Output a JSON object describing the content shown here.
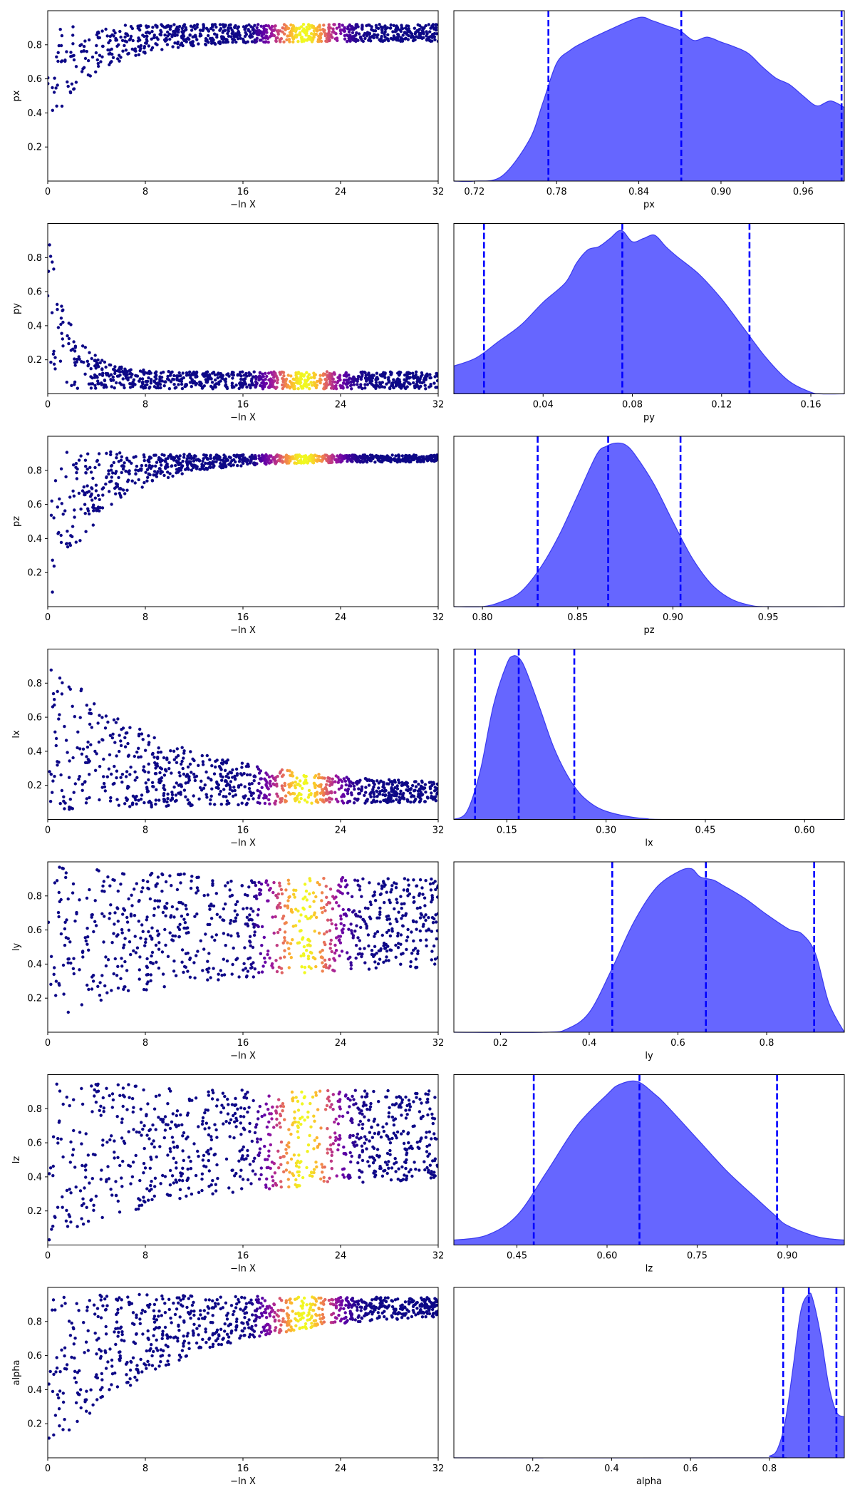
{
  "trace_xlabel": "−ln X",
  "trace_xticks": [
    0,
    8,
    16,
    24,
    32
  ],
  "trace_xlim": [
    0,
    32
  ],
  "trace_ylim": [
    0,
    1
  ],
  "trace_yticks": [
    0.2,
    0.4,
    0.6,
    0.8
  ],
  "colormap": [
    "#0d0887",
    "#5c01a6",
    "#9c179e",
    "#cc4778",
    "#ed7953",
    "#fdb42f",
    "#f0f921"
  ],
  "fill_color": "#6666ff",
  "line_color": "#0000ff",
  "chart_data": [
    {
      "type": "scatter",
      "param": "px",
      "ylabel": "px",
      "trace": {
        "start": [
          0.3,
          0.9
        ],
        "converge": 0.87,
        "spread": 0.05,
        "xmax": 32,
        "tau": 4,
        "bright_center": 21,
        "bright_width": 2.5
      },
      "kde": {
        "xlabel": "px",
        "xlim": [
          0.705,
          0.99
        ],
        "xticks": [
          0.72,
          0.78,
          0.84,
          0.9,
          0.96
        ],
        "x": [
          0.705,
          0.72,
          0.74,
          0.76,
          0.77,
          0.78,
          0.79,
          0.8,
          0.82,
          0.84,
          0.85,
          0.86,
          0.87,
          0.88,
          0.89,
          0.9,
          0.91,
          0.92,
          0.93,
          0.94,
          0.95,
          0.96,
          0.97,
          0.98,
          0.99
        ],
        "y": [
          0.0,
          0.0,
          0.03,
          0.25,
          0.48,
          0.72,
          0.8,
          0.85,
          0.93,
          1.0,
          0.98,
          0.95,
          0.92,
          0.86,
          0.88,
          0.85,
          0.82,
          0.78,
          0.7,
          0.63,
          0.59,
          0.52,
          0.46,
          0.49,
          0.45
        ],
        "quantiles": [
          0.774,
          0.871,
          0.988
        ]
      }
    },
    {
      "type": "scatter",
      "param": "py",
      "ylabel": "py",
      "trace": {
        "start": [
          0.02,
          0.98
        ],
        "converge": 0.08,
        "spread": 0.05,
        "xmax": 32,
        "tau": 1.8,
        "bright_center": 21,
        "bright_width": 2.5
      },
      "kde": {
        "xlabel": "py",
        "xlim": [
          0.0,
          0.175
        ],
        "xticks": [
          0.04,
          0.08,
          0.12,
          0.16
        ],
        "x": [
          0.0,
          0.01,
          0.02,
          0.03,
          0.04,
          0.05,
          0.055,
          0.06,
          0.065,
          0.07,
          0.075,
          0.08,
          0.085,
          0.09,
          0.095,
          0.1,
          0.11,
          0.12,
          0.13,
          0.14,
          0.15,
          0.16,
          0.165,
          0.175
        ],
        "y": [
          0.17,
          0.22,
          0.32,
          0.42,
          0.56,
          0.68,
          0.8,
          0.88,
          0.9,
          0.95,
          1.0,
          0.93,
          0.95,
          0.97,
          0.9,
          0.84,
          0.73,
          0.58,
          0.4,
          0.22,
          0.08,
          0.01,
          0.0,
          0.0
        ],
        "quantiles": [
          0.0135,
          0.0755,
          0.1325
        ]
      }
    },
    {
      "type": "scatter",
      "param": "pz",
      "ylabel": "pz",
      "trace": {
        "start": [
          0.0,
          0.95
        ],
        "converge": 0.87,
        "spread": 0.02,
        "xmax": 32,
        "tau": 4.5,
        "bright_center": 21,
        "bright_width": 2.5
      },
      "kde": {
        "xlabel": "pz",
        "xlim": [
          0.785,
          0.99
        ],
        "xticks": [
          0.8,
          0.85,
          0.9,
          0.95
        ],
        "x": [
          0.785,
          0.8,
          0.81,
          0.82,
          0.83,
          0.84,
          0.85,
          0.86,
          0.865,
          0.87,
          0.875,
          0.88,
          0.89,
          0.9,
          0.91,
          0.92,
          0.93,
          0.94,
          0.95,
          0.99
        ],
        "y": [
          0.0,
          0.0,
          0.03,
          0.09,
          0.23,
          0.43,
          0.68,
          0.93,
          0.98,
          1.0,
          0.99,
          0.93,
          0.75,
          0.52,
          0.3,
          0.14,
          0.05,
          0.01,
          0.0,
          0.0
        ],
        "quantiles": [
          0.829,
          0.866,
          0.904
        ]
      }
    },
    {
      "type": "scatter",
      "param": "lx",
      "ylabel": "lx",
      "trace": {
        "start": [
          0.02,
          0.98
        ],
        "converge": 0.15,
        "spread": 0.05,
        "xmax": 32,
        "tau": 9,
        "bright_center": 21,
        "bright_width": 2.5
      },
      "kde": {
        "xlabel": "lx",
        "xlim": [
          0.07,
          0.66
        ],
        "xticks": [
          0.15,
          0.3,
          0.45,
          0.6
        ],
        "x": [
          0.07,
          0.09,
          0.11,
          0.13,
          0.15,
          0.16,
          0.17,
          0.18,
          0.2,
          0.22,
          0.24,
          0.26,
          0.28,
          0.3,
          0.33,
          0.36,
          0.4,
          0.66
        ],
        "y": [
          0.0,
          0.05,
          0.3,
          0.7,
          0.95,
          1.0,
          0.98,
          0.9,
          0.68,
          0.45,
          0.28,
          0.16,
          0.09,
          0.05,
          0.02,
          0.005,
          0.0,
          0.0
        ],
        "quantiles": [
          0.102,
          0.168,
          0.252
        ]
      }
    },
    {
      "type": "scatter",
      "param": "ly",
      "ylabel": "ly",
      "trace": {
        "start": [
          0.05,
          0.98
        ],
        "converge": 0.65,
        "spread": 0.25,
        "xmax": 32,
        "tau": 11,
        "bright_center": 21,
        "bright_width": 2.5
      },
      "kde": {
        "xlabel": "ly",
        "xlim": [
          0.095,
          0.975
        ],
        "xticks": [
          0.2,
          0.4,
          0.6,
          0.8
        ],
        "x": [
          0.095,
          0.3,
          0.35,
          0.4,
          0.45,
          0.5,
          0.55,
          0.6,
          0.63,
          0.65,
          0.68,
          0.7,
          0.75,
          0.8,
          0.85,
          0.88,
          0.91,
          0.94,
          0.975
        ],
        "y": [
          0.0,
          0.0,
          0.02,
          0.12,
          0.38,
          0.67,
          0.88,
          0.98,
          1.0,
          0.95,
          0.93,
          0.9,
          0.82,
          0.72,
          0.63,
          0.6,
          0.48,
          0.18,
          0.0
        ],
        "quantiles": [
          0.452,
          0.663,
          0.907
        ]
      }
    },
    {
      "type": "scatter",
      "param": "lz",
      "ylabel": "lz",
      "trace": {
        "start": [
          0.02,
          0.98
        ],
        "converge": 0.65,
        "spread": 0.25,
        "xmax": 32,
        "tau": 11,
        "bright_center": 21,
        "bright_width": 2.5
      },
      "kde": {
        "xlabel": "lz",
        "xlim": [
          0.345,
          0.995
        ],
        "xticks": [
          0.45,
          0.6,
          0.75,
          0.9
        ],
        "x": [
          0.345,
          0.4,
          0.45,
          0.5,
          0.55,
          0.6,
          0.62,
          0.65,
          0.68,
          0.7,
          0.75,
          0.8,
          0.85,
          0.88,
          0.9,
          0.95,
          0.995
        ],
        "y": [
          0.03,
          0.06,
          0.18,
          0.45,
          0.73,
          0.92,
          0.98,
          1.0,
          0.92,
          0.85,
          0.65,
          0.45,
          0.28,
          0.18,
          0.12,
          0.05,
          0.03
        ],
        "quantiles": [
          0.478,
          0.654,
          0.883
        ]
      }
    },
    {
      "type": "scatter",
      "param": "alpha",
      "ylabel": "alpha",
      "trace": {
        "start": [
          0.0,
          0.98
        ],
        "converge": 0.9,
        "spread": 0.04,
        "xmax": 32,
        "tau": 10,
        "bright_center": 21,
        "bright_width": 2.5
      },
      "kde": {
        "xlabel": "alpha",
        "xlim": [
          0.0,
          0.99
        ],
        "xticks": [
          0.2,
          0.4,
          0.6,
          0.8
        ],
        "x": [
          0.0,
          0.78,
          0.8,
          0.82,
          0.84,
          0.86,
          0.88,
          0.9,
          0.91,
          0.93,
          0.95,
          0.97,
          0.99
        ],
        "y": [
          0.0,
          0.0,
          0.01,
          0.05,
          0.22,
          0.55,
          0.9,
          1.0,
          0.97,
          0.75,
          0.45,
          0.28,
          0.25
        ],
        "quantiles": [
          0.835,
          0.9,
          0.97
        ]
      }
    }
  ]
}
